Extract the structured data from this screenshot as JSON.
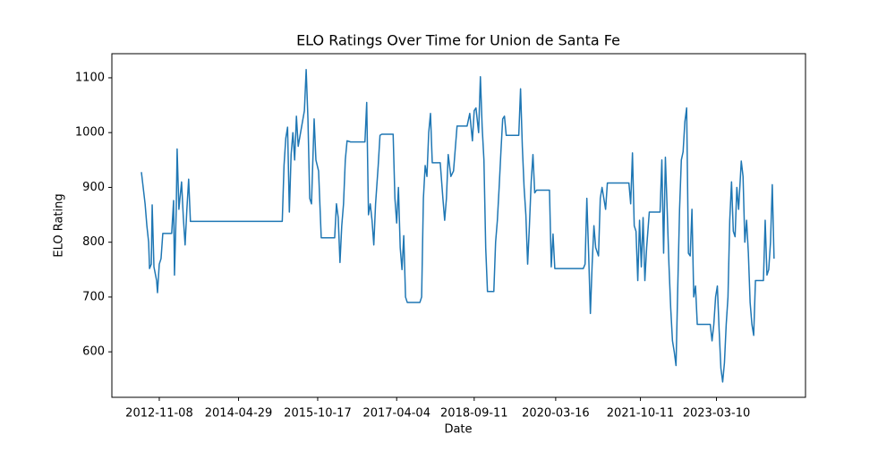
{
  "chart_data": {
    "type": "line",
    "title": "ELO Ratings Over Time for Union de Santa Fe",
    "x_label": "Date",
    "y_label": "ELO Rating",
    "x": [
      "2012-07-10",
      "2012-08-04",
      "2012-08-16",
      "2012-08-28",
      "2012-09-03",
      "2012-09-15",
      "2012-09-21",
      "2012-10-03",
      "2012-10-21",
      "2012-10-27",
      "2012-11-08",
      "2012-11-20",
      "2012-12-02",
      "2013-01-31",
      "2013-02-13",
      "2013-02-19",
      "2013-03-03",
      "2013-03-09",
      "2013-03-21",
      "2013-04-08",
      "2013-04-20",
      "2013-05-02",
      "2013-05-14",
      "2013-05-26",
      "2013-06-07",
      "2015-02-19",
      "2015-03-03",
      "2015-03-15",
      "2015-03-27",
      "2015-04-08",
      "2015-04-20",
      "2015-05-02",
      "2015-05-14",
      "2015-05-26",
      "2015-06-07",
      "2015-07-19",
      "2015-07-31",
      "2015-08-12",
      "2015-08-24",
      "2015-09-05",
      "2015-09-23",
      "2015-10-05",
      "2015-10-23",
      "2015-11-10",
      "2016-02-09",
      "2016-02-21",
      "2016-03-04",
      "2016-03-16",
      "2016-03-28",
      "2016-04-09",
      "2016-04-21",
      "2016-05-03",
      "2016-05-27",
      "2016-09-01",
      "2016-09-13",
      "2016-09-25",
      "2016-10-07",
      "2016-10-19",
      "2016-10-31",
      "2016-11-12",
      "2016-11-30",
      "2016-12-12",
      "2016-12-24",
      "2017-03-11",
      "2017-03-23",
      "2017-04-04",
      "2017-04-16",
      "2017-04-28",
      "2017-05-10",
      "2017-05-22",
      "2017-06-03",
      "2017-06-15",
      "2017-09-08",
      "2017-09-20",
      "2017-10-02",
      "2017-10-14",
      "2017-10-26",
      "2017-11-07",
      "2017-11-19",
      "2017-12-01",
      "2018-01-24",
      "2018-02-11",
      "2018-02-23",
      "2018-03-07",
      "2018-03-19",
      "2018-04-06",
      "2018-04-24",
      "2018-05-18",
      "2018-07-25",
      "2018-08-12",
      "2018-08-30",
      "2018-09-11",
      "2018-09-23",
      "2018-10-11",
      "2018-10-23",
      "2018-11-04",
      "2018-11-16",
      "2018-11-28",
      "2018-12-10",
      "2019-01-22",
      "2019-02-03",
      "2019-02-15",
      "2019-02-27",
      "2019-03-11",
      "2019-03-23",
      "2019-04-04",
      "2019-04-16",
      "2019-07-10",
      "2019-07-22",
      "2019-08-03",
      "2019-08-15",
      "2019-08-27",
      "2019-09-08",
      "2019-09-20",
      "2019-10-02",
      "2019-10-14",
      "2019-10-26",
      "2019-11-07",
      "2020-02-03",
      "2020-02-15",
      "2020-02-27",
      "2020-03-10",
      "2020-09-19",
      "2020-10-01",
      "2020-10-13",
      "2020-10-25",
      "2020-11-06",
      "2020-11-18",
      "2020-11-30",
      "2020-12-12",
      "2020-12-31",
      "2021-01-12",
      "2021-01-24",
      "2021-02-17",
      "2021-03-01",
      "2021-07-25",
      "2021-08-06",
      "2021-08-18",
      "2021-08-30",
      "2021-09-11",
      "2021-09-23",
      "2021-10-05",
      "2021-10-17",
      "2021-10-29",
      "2021-11-10",
      "2021-11-22",
      "2021-12-10",
      "2022-02-21",
      "2022-03-05",
      "2022-03-17",
      "2022-03-29",
      "2022-04-10",
      "2022-04-22",
      "2022-05-04",
      "2022-05-16",
      "2022-05-28",
      "2022-06-09",
      "2022-06-21",
      "2022-07-03",
      "2022-07-15",
      "2022-07-27",
      "2022-08-08",
      "2022-08-20",
      "2022-09-01",
      "2022-09-13",
      "2022-09-25",
      "2022-10-07",
      "2022-10-19",
      "2022-10-31",
      "2023-01-27",
      "2023-02-08",
      "2023-02-20",
      "2023-03-04",
      "2023-03-16",
      "2023-03-28",
      "2023-04-09",
      "2023-04-21",
      "2023-05-03",
      "2023-05-15",
      "2023-05-27",
      "2023-06-08",
      "2023-06-20",
      "2023-07-02",
      "2023-07-14",
      "2023-07-26",
      "2023-08-07",
      "2023-08-25",
      "2023-09-06",
      "2023-09-18",
      "2023-09-30",
      "2023-10-12",
      "2023-10-24",
      "2023-11-05",
      "2023-11-17",
      "2023-11-29",
      "2024-01-22",
      "2024-02-03",
      "2024-02-15",
      "2024-02-27",
      "2024-03-10",
      "2024-03-22",
      "2024-04-03"
    ],
    "series": [
      {
        "name": "ELO Rating",
        "color": "#1f77b4",
        "values": [
          928,
          870,
          830,
          800,
          752,
          760,
          868,
          755,
          730,
          708,
          760,
          770,
          816,
          816,
          876,
          740,
          860,
          970,
          860,
          910,
          845,
          795,
          860,
          915,
          838,
          838,
          940,
          990,
          1010,
          855,
          960,
          1000,
          950,
          1030,
          975,
          1040,
          1115,
          1025,
          880,
          870,
          1025,
          950,
          930,
          808,
          808,
          870,
          845,
          763,
          830,
          870,
          950,
          985,
          983,
          983,
          1055,
          850,
          870,
          840,
          795,
          870,
          940,
          995,
          997,
          997,
          880,
          835,
          900,
          790,
          750,
          812,
          700,
          690,
          690,
          700,
          880,
          940,
          920,
          1000,
          1035,
          945,
          945,
          880,
          840,
          880,
          960,
          920,
          930,
          1012,
          1012,
          1035,
          985,
          1040,
          1045,
          1000,
          1102,
          1010,
          950,
          790,
          710,
          710,
          800,
          840,
          900,
          965,
          1025,
          1030,
          995,
          995,
          1080,
          975,
          900,
          850,
          760,
          830,
          910,
          960,
          890,
          895,
          895,
          755,
          815,
          752,
          752,
          760,
          880,
          780,
          670,
          760,
          830,
          790,
          775,
          880,
          900,
          860,
          908,
          908,
          870,
          963,
          830,
          820,
          730,
          840,
          755,
          845,
          730,
          790,
          855,
          855,
          950,
          780,
          955,
          860,
          760,
          680,
          620,
          600,
          575,
          720,
          860,
          950,
          965,
          1020,
          1045,
          780,
          775,
          860,
          700,
          720,
          650,
          650,
          620,
          650,
          700,
          720,
          640,
          570,
          545,
          580,
          650,
          700,
          840,
          910,
          820,
          810,
          900,
          860,
          948,
          920,
          800,
          840,
          780,
          690,
          650,
          630,
          730,
          730,
          840,
          740,
          750,
          800,
          905,
          770
        ]
      }
    ],
    "xlim": [
      "2011-12-23",
      "2024-11-02"
    ],
    "xticks": [
      "2012-11-08",
      "2014-04-29",
      "2015-10-17",
      "2017-04-04",
      "2018-09-11",
      "2020-03-16",
      "2021-10-11",
      "2023-03-10"
    ],
    "ylim": [
      517,
      1144
    ],
    "yticks": [
      600,
      700,
      800,
      900,
      1000,
      1100
    ]
  }
}
